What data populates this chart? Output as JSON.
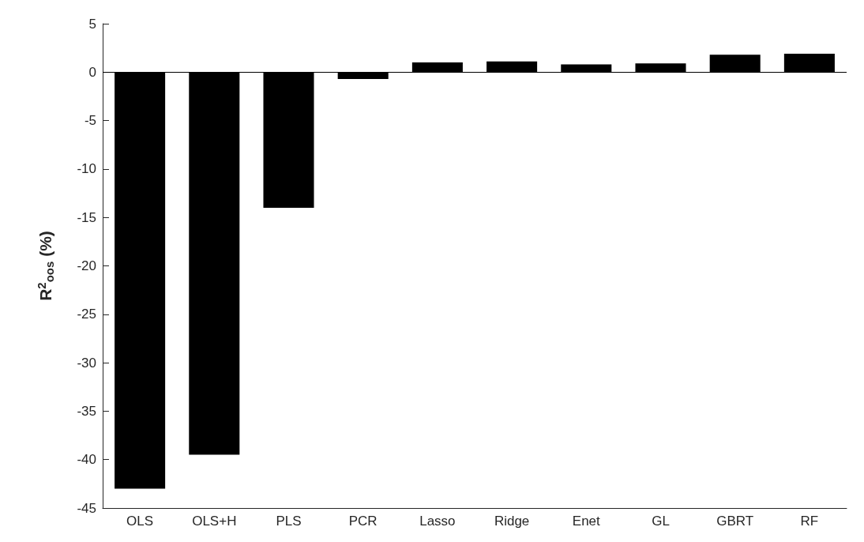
{
  "chart_data": {
    "type": "bar",
    "ylabel": "R$^{2}$$_{oos}$ (%)",
    "categories": [
      "OLS",
      "OLS+H",
      "PLS",
      "PCR",
      "Lasso",
      "Ridge",
      "Enet",
      "GL",
      "GBRT",
      "RF"
    ],
    "values": [
      -43,
      -39.5,
      -14,
      -0.7,
      1.0,
      1.1,
      0.8,
      0.9,
      1.8,
      1.9
    ],
    "color": "#000000",
    "ylim": [
      -45,
      5
    ],
    "yticks": [
      -45,
      -40,
      -35,
      -30,
      -25,
      -20,
      -15,
      -10,
      -5,
      0,
      5
    ],
    "grid": false,
    "ref_lines": [
      {
        "axis": "y",
        "value": 0,
        "color": "#000000"
      }
    ]
  }
}
